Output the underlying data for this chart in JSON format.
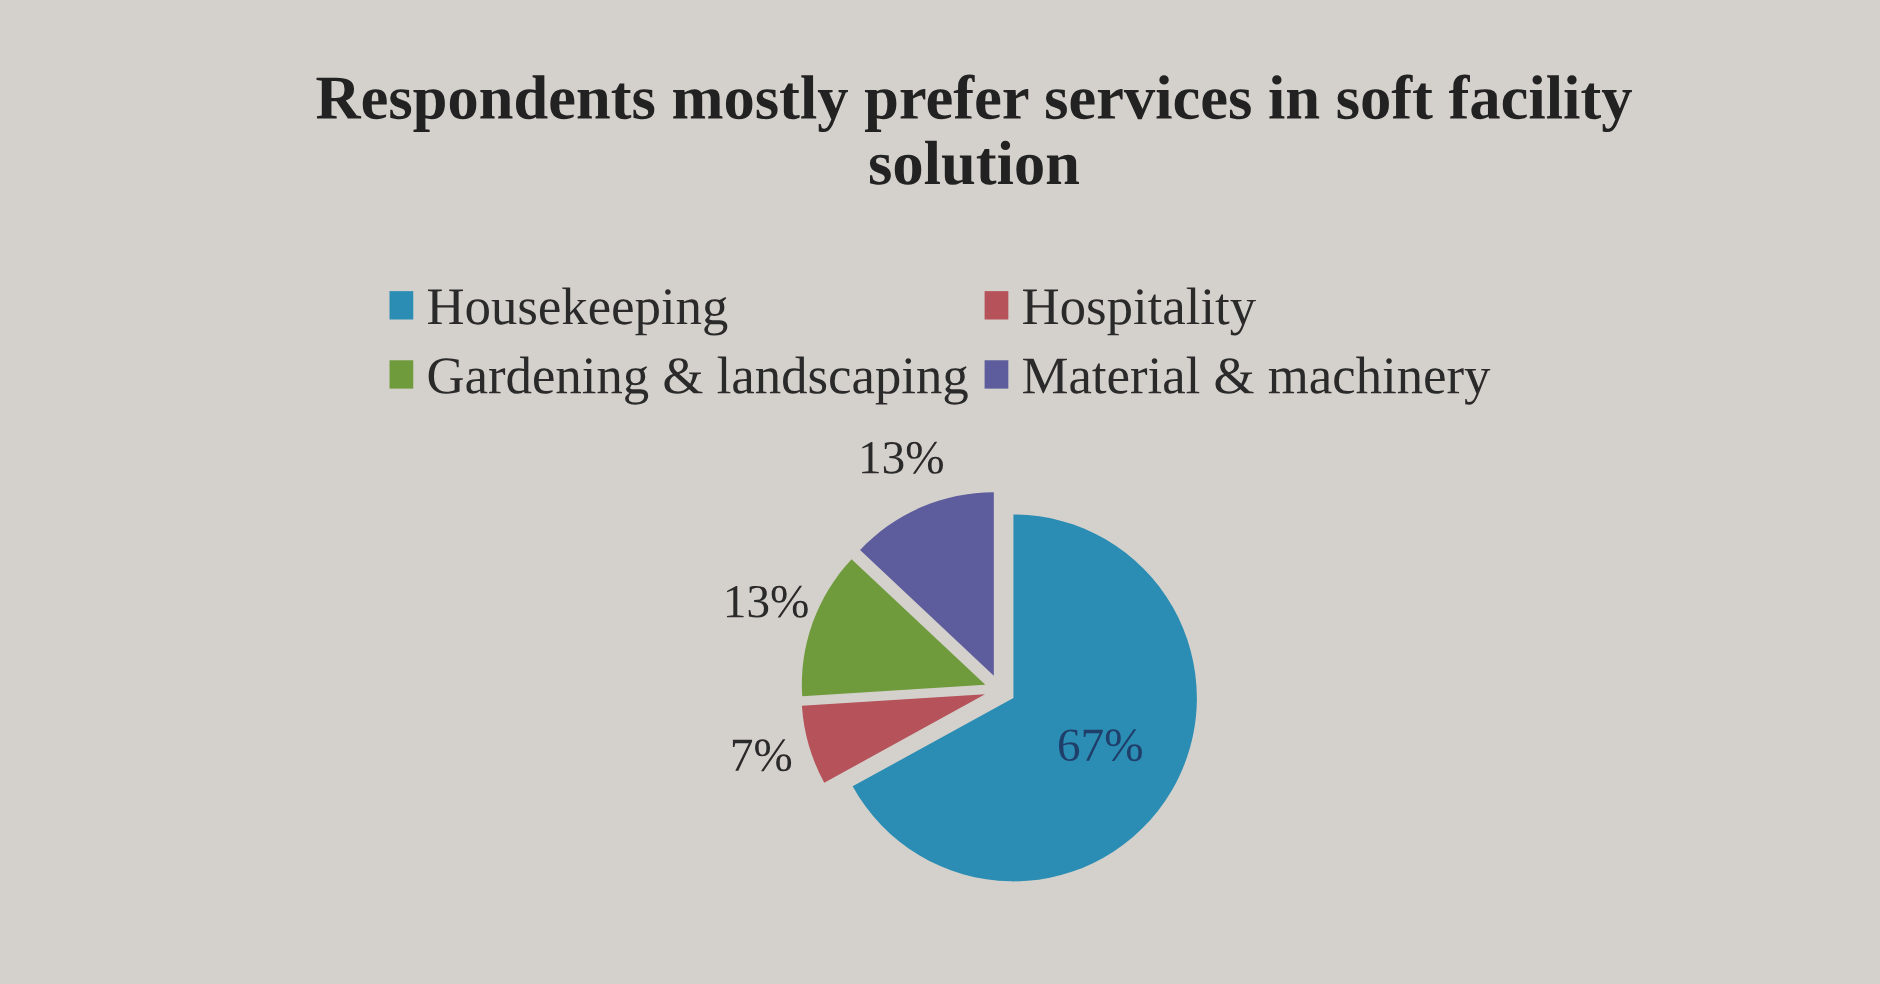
{
  "chart_data": {
    "type": "pie",
    "title": "Respondents mostly prefer services in soft facility\nsolution",
    "categories": [
      "Housekeeping",
      "Hospitality",
      "Gardening & landscaping",
      "Material & machinery"
    ],
    "values": [
      67,
      7,
      13,
      13
    ],
    "colors": [
      "#2b8db3",
      "#b5525a",
      "#6f9b3c",
      "#5d5c9c"
    ],
    "value_labels": [
      "67%",
      "7%",
      "13%",
      "13%"
    ],
    "legend": "top"
  }
}
